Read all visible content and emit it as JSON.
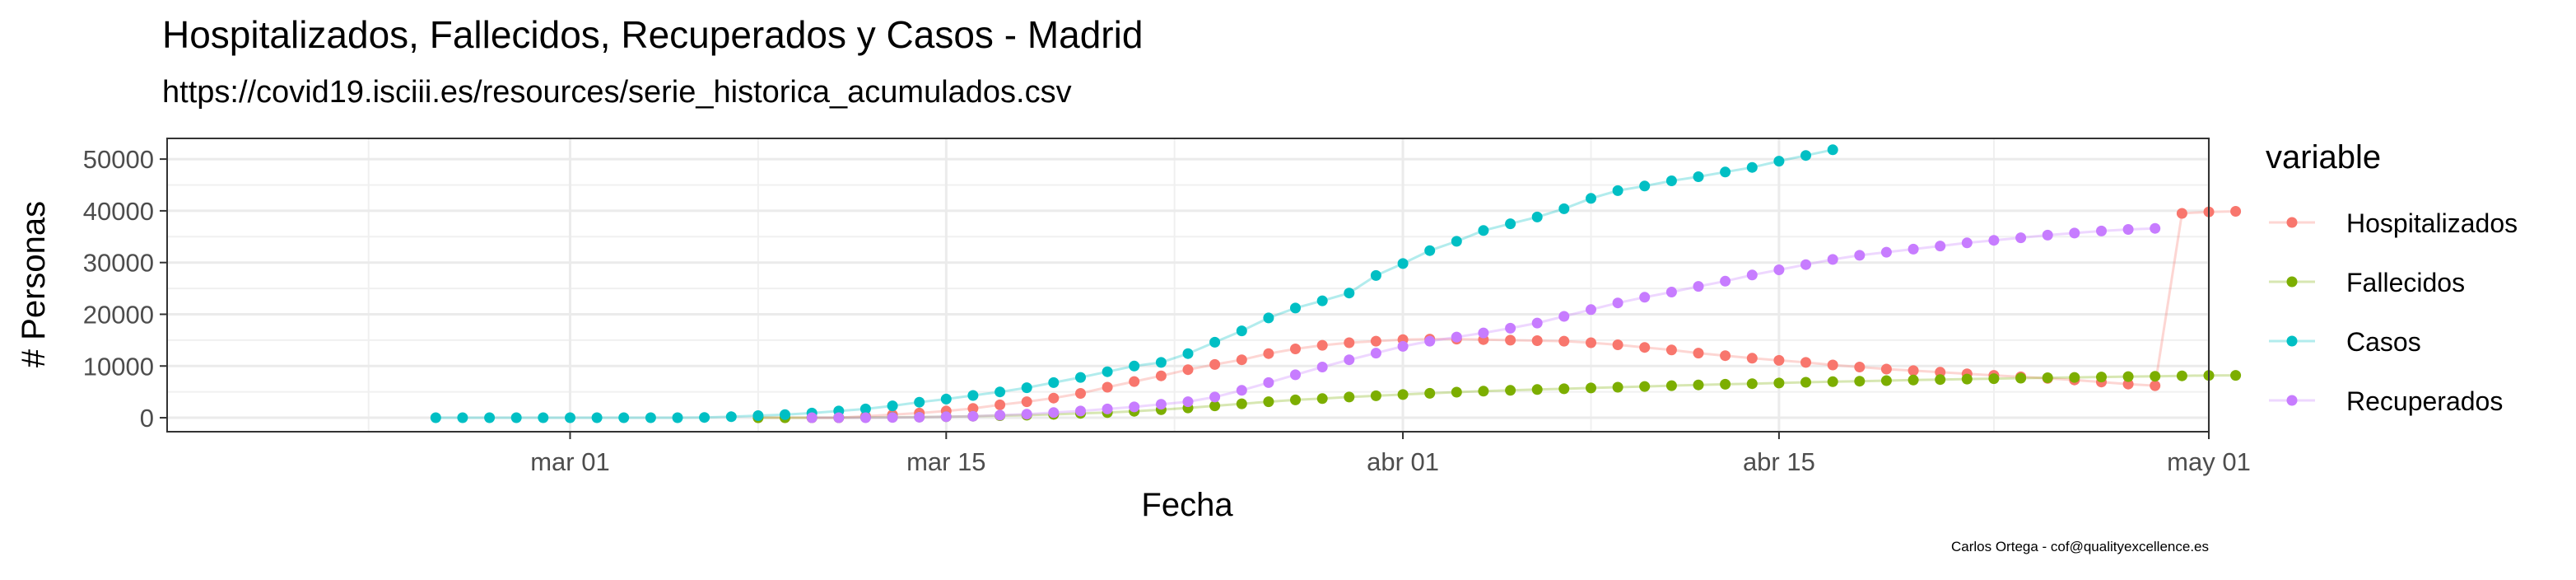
{
  "chart_data": {
    "type": "line",
    "title": "Hospitalizados, Fallecidos, Recuperados y Casos - Madrid",
    "subtitle": "https://covid19.isciii.es/resources/serie_historica_acumulados.csv",
    "caption": "Carlos Ortega - cof@qualityexcellence.es",
    "xlabel": "Fecha",
    "ylabel": "# Personas",
    "x_ticks": [
      {
        "date": "2020-03-01",
        "label": "mar 01"
      },
      {
        "date": "2020-03-15",
        "label": "mar 15"
      },
      {
        "date": "2020-04-01",
        "label": "abr 01"
      },
      {
        "date": "2020-04-15",
        "label": "abr 15"
      },
      {
        "date": "2020-05-01",
        "label": "may 01"
      }
    ],
    "xlim": [
      "2020-02-15",
      "2020-05-01"
    ],
    "y_ticks": [
      0,
      10000,
      20000,
      30000,
      40000,
      50000
    ],
    "ylim": [
      -2700,
      54000
    ],
    "legend_title": "variable",
    "legend_position": "right",
    "grid": true,
    "series": [
      {
        "name": "Hospitalizados",
        "color": "#F8766D",
        "start": "2020-03-08",
        "values": [
          0,
          0,
          0,
          0,
          300,
          600,
          900,
          1300,
          1800,
          2500,
          3100,
          3800,
          4700,
          5900,
          7000,
          8100,
          9300,
          10300,
          11200,
          12400,
          13300,
          14000,
          14500,
          14800,
          15100,
          15200,
          15200,
          15100,
          15000,
          14900,
          14800,
          14500,
          14100,
          13600,
          13100,
          12500,
          12000,
          11500,
          11100,
          10700,
          10200,
          9800,
          9400,
          9100,
          8800,
          8500,
          8200,
          7900,
          7600,
          7300,
          6900,
          6500,
          6200,
          39500,
          39800,
          39900
        ]
      },
      {
        "name": "Fallecidos",
        "color": "#7CAE00",
        "start": "2020-03-08",
        "values": [
          0,
          0,
          0,
          0,
          50,
          80,
          120,
          200,
          300,
          400,
          500,
          650,
          850,
          1000,
          1250,
          1550,
          1900,
          2300,
          2700,
          3100,
          3450,
          3700,
          4000,
          4250,
          4480,
          4720,
          4950,
          5130,
          5300,
          5450,
          5600,
          5750,
          5900,
          6050,
          6200,
          6350,
          6470,
          6590,
          6720,
          6850,
          6960,
          7070,
          7180,
          7280,
          7380,
          7470,
          7560,
          7650,
          7730,
          7800,
          7880,
          7950,
          8020,
          8100,
          8180,
          8200
        ]
      },
      {
        "name": "Casos",
        "color": "#00BFC4",
        "start": "2020-02-25",
        "values": [
          0,
          0,
          0,
          0,
          0,
          0,
          0,
          0,
          0,
          0,
          50,
          200,
          400,
          600,
          900,
          1300,
          1700,
          2300,
          3000,
          3600,
          4300,
          5000,
          5800,
          6800,
          7800,
          8900,
          10000,
          10700,
          12400,
          14600,
          16800,
          19300,
          21200,
          22600,
          24100,
          27500,
          29800,
          32300,
          34100,
          36200,
          37500,
          38800,
          40400,
          42400,
          43900,
          44800,
          45800,
          46600,
          47500,
          48400,
          49600,
          50700,
          51800
        ]
      },
      {
        "name": "Recuperados",
        "color": "#C77CFF",
        "start": "2020-03-10",
        "values": [
          0,
          0,
          0,
          50,
          100,
          200,
          300,
          500,
          700,
          1000,
          1300,
          1700,
          2100,
          2600,
          3100,
          4000,
          5300,
          6800,
          8300,
          9800,
          11200,
          12500,
          13800,
          14800,
          15600,
          16400,
          17300,
          18300,
          19600,
          20900,
          22200,
          23300,
          24300,
          25400,
          26400,
          27600,
          28600,
          29600,
          30600,
          31400,
          32000,
          32600,
          33200,
          33800,
          34300,
          34800,
          35300,
          35700,
          36100,
          36400,
          36600
        ]
      }
    ]
  }
}
